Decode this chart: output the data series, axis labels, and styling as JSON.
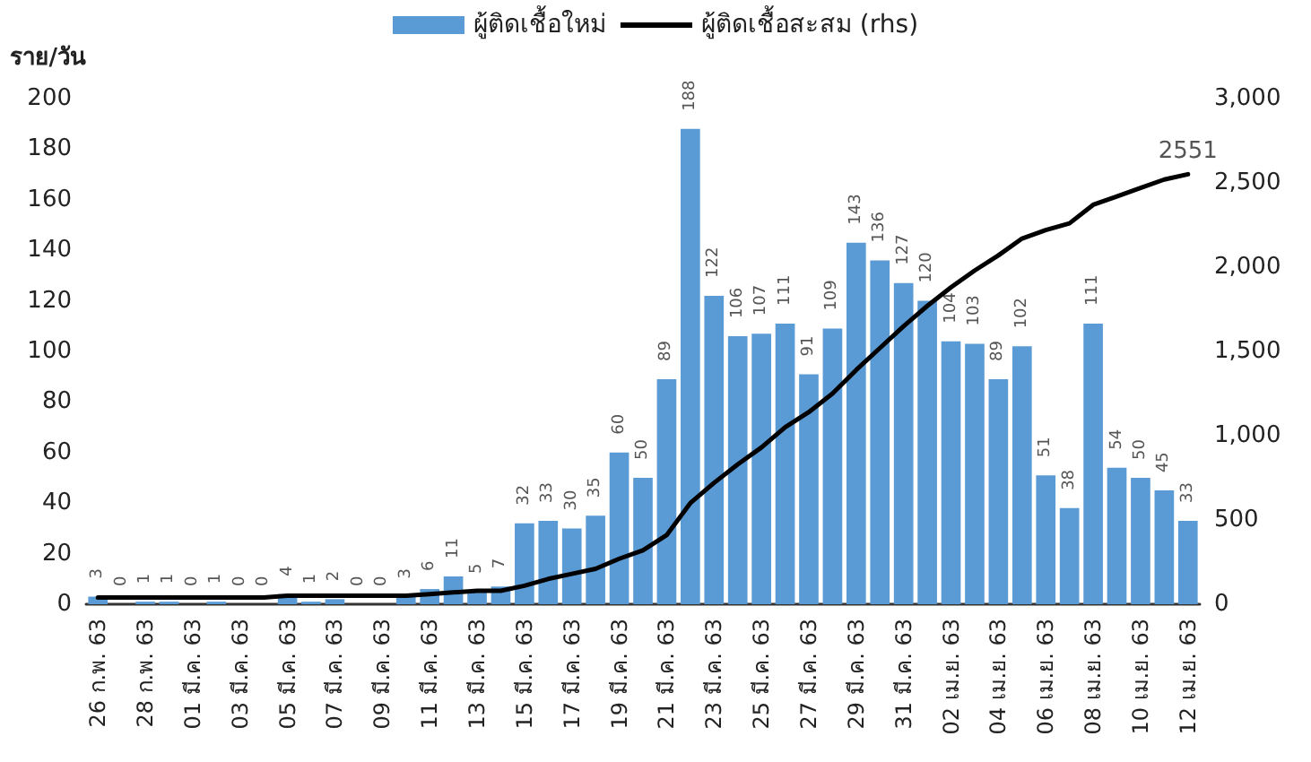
{
  "chart_data": {
    "type": "bar",
    "ylabel": "ราย/วัน",
    "categories": [
      "26 ก.พ. 63",
      null,
      "28 ก.พ. 63",
      null,
      "01 มี.ค. 63",
      null,
      "03 มี.ค. 63",
      null,
      "05 มี.ค. 63",
      null,
      "07 มี.ค. 63",
      null,
      "09 มี.ค. 63",
      null,
      "11 มี.ค. 63",
      null,
      "13 มี.ค. 63",
      null,
      "15 มี.ค. 63",
      null,
      "17 มี.ค. 63",
      null,
      "19 มี.ค. 63",
      null,
      "21 มี.ค. 63",
      null,
      "23 มี.ค. 63",
      null,
      "25 มี.ค. 63",
      null,
      "27 มี.ค. 63",
      null,
      "29 มี.ค. 63",
      null,
      "31 มี.ค. 63",
      null,
      "02 เม.ย. 63",
      null,
      "04 เม.ย. 63",
      null,
      "06 เม.ย. 63",
      null,
      "08 เม.ย. 63",
      null,
      "10 เม.ย. 63",
      null,
      "12 เม.ย. 63"
    ],
    "series": [
      {
        "name": "ผู้ติดเชื้อใหม่",
        "color": "#5b9bd5",
        "values": [
          3,
          0,
          1,
          1,
          0,
          1,
          0,
          0,
          4,
          1,
          2,
          0,
          0,
          3,
          6,
          11,
          5,
          7,
          32,
          33,
          30,
          35,
          60,
          50,
          89,
          188,
          122,
          106,
          107,
          111,
          91,
          109,
          143,
          136,
          127,
          120,
          104,
          103,
          89,
          102,
          51,
          38,
          111,
          54,
          50,
          45,
          33
        ]
      },
      {
        "name": "ผู้ติดเชื้อสะสม (rhs)",
        "type": "line",
        "axis": "y2",
        "color": "#000000",
        "values": [
          40,
          40,
          40,
          40,
          40,
          40,
          40,
          40,
          50,
          50,
          50,
          50,
          50,
          50,
          60,
          70,
          80,
          80,
          110,
          150,
          180,
          210,
          270,
          320,
          410,
          600,
          720,
          830,
          930,
          1050,
          1140,
          1250,
          1390,
          1520,
          1650,
          1770,
          1880,
          1980,
          2070,
          2170,
          2220,
          2260,
          2370,
          2420,
          2470,
          2520,
          2551
        ],
        "value_labels": [
          null,
          null,
          null,
          null,
          null,
          null,
          null,
          null,
          null,
          null,
          null,
          null,
          null,
          null,
          null,
          null,
          null,
          null,
          null,
          null,
          null,
          null,
          null,
          null,
          null,
          null,
          null,
          null,
          null,
          null,
          null,
          null,
          null,
          null,
          null,
          null,
          null,
          null,
          null,
          null,
          null,
          null,
          null,
          null,
          null,
          null,
          "2551"
        ]
      }
    ],
    "ylim": [
      0,
      200
    ],
    "yticks": [
      0,
      20,
      40,
      60,
      80,
      100,
      120,
      140,
      160,
      180,
      200
    ],
    "y2lim": [
      0,
      3000
    ],
    "y2ticks": [
      {
        "value": 0,
        "label": "0"
      },
      {
        "value": 500,
        "label": "500"
      },
      {
        "value": 1000,
        "label": "1,000"
      },
      {
        "value": 1500,
        "label": "1,500"
      },
      {
        "value": 2000,
        "label": "2,000"
      },
      {
        "value": 2500,
        "label": "2,500"
      },
      {
        "value": 3000,
        "label": "3,000"
      }
    ],
    "data_labels": true,
    "grid": false,
    "legend": "top",
    "marker": "none",
    "line_style": "solid"
  }
}
